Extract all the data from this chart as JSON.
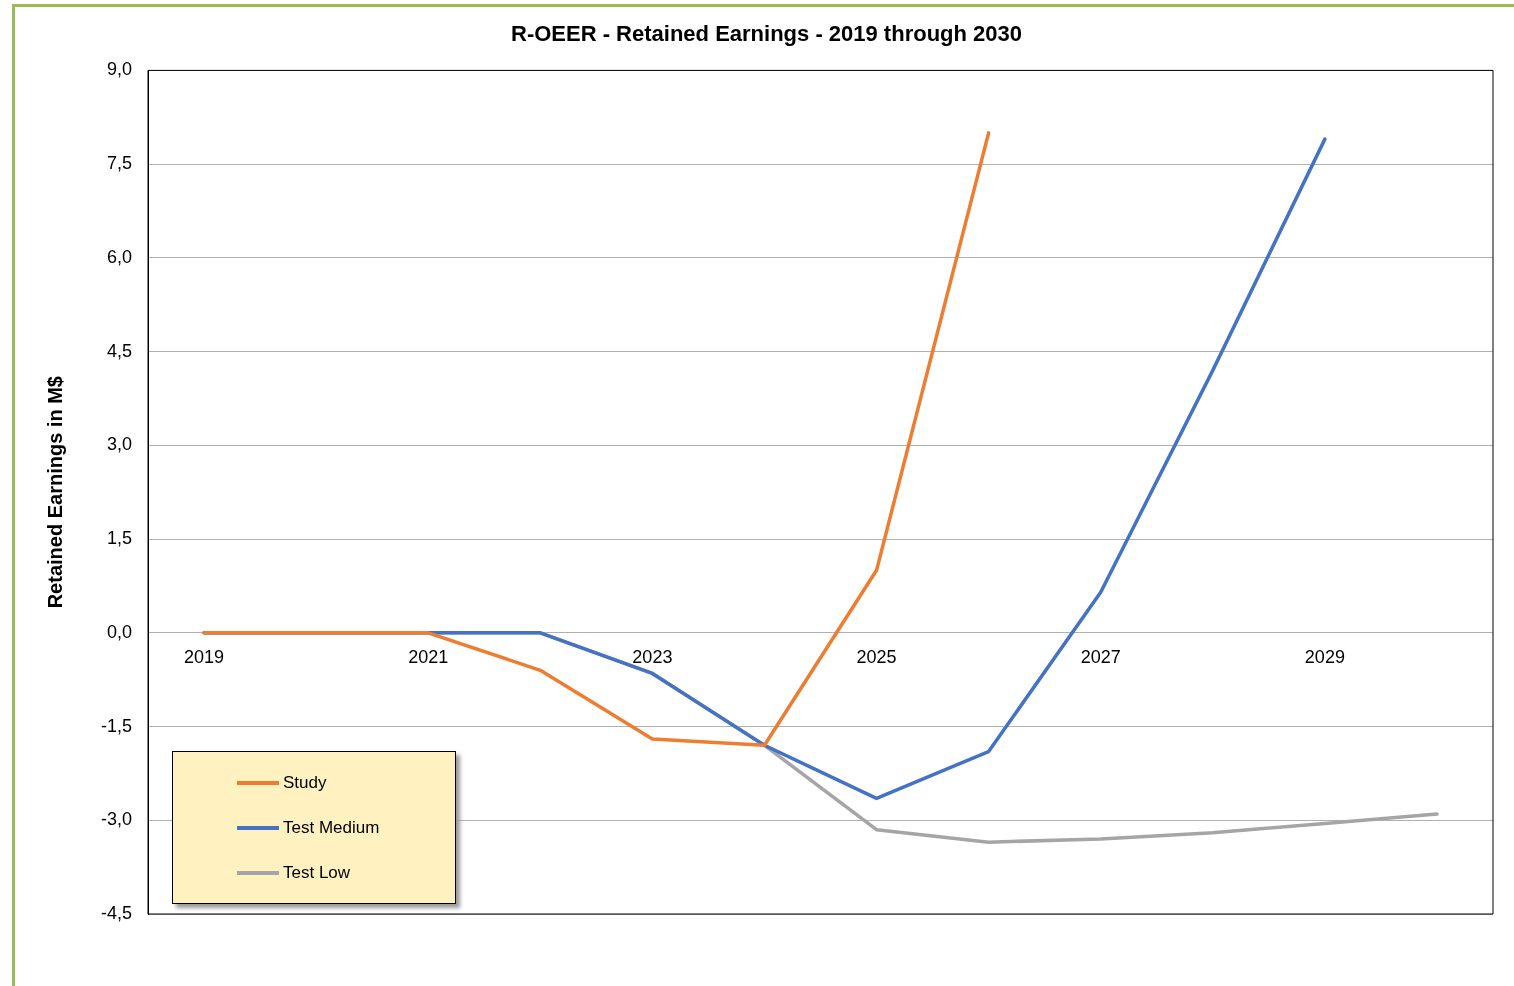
{
  "chart_data": {
    "type": "line",
    "title": "R-OEER - Retained Earnings - 2019 through 2030",
    "ylabel": "Retained Earnings in M$",
    "categories": [
      "2019",
      null,
      "2021",
      null,
      "2023",
      null,
      "2025",
      null,
      "2027",
      null,
      "2029",
      null
    ],
    "series": [
      {
        "name": "Study",
        "color": "#ed7d31",
        "values": [
          0,
          0,
          0,
          -0.6,
          -1.7,
          -1.8,
          1.0,
          8.0,
          null,
          null,
          null,
          null
        ]
      },
      {
        "name": "Test Medium",
        "color": "#4472c4",
        "values": [
          0,
          0,
          0,
          0,
          -0.65,
          -1.8,
          -2.65,
          -1.9,
          0.65,
          4.2,
          7.9,
          null
        ]
      },
      {
        "name": "Test Low",
        "color": "#a5a5a5",
        "values": [
          0,
          0,
          0,
          0,
          -0.65,
          -1.8,
          -3.15,
          -3.35,
          -3.3,
          -3.2,
          -3.05,
          -2.9
        ]
      }
    ],
    "ylim": [
      -4.5,
      9
    ],
    "yticks": [
      {
        "value": -4.5,
        "label": "-4,5"
      },
      {
        "value": -3,
        "label": "-3,0"
      },
      {
        "value": -1.5,
        "label": "-1,5"
      },
      {
        "value": 0,
        "label": "0,0"
      },
      {
        "value": 1.5,
        "label": "1,5"
      },
      {
        "value": 3,
        "label": "3,0"
      },
      {
        "value": 4.5,
        "label": "4,5"
      },
      {
        "value": 6,
        "label": "6,0"
      },
      {
        "value": 7.5,
        "label": "7,5"
      },
      {
        "value": 9,
        "label": "9,0"
      }
    ],
    "grid": "y",
    "legend": "bottom left",
    "marker": "none",
    "line_style": "solid"
  }
}
